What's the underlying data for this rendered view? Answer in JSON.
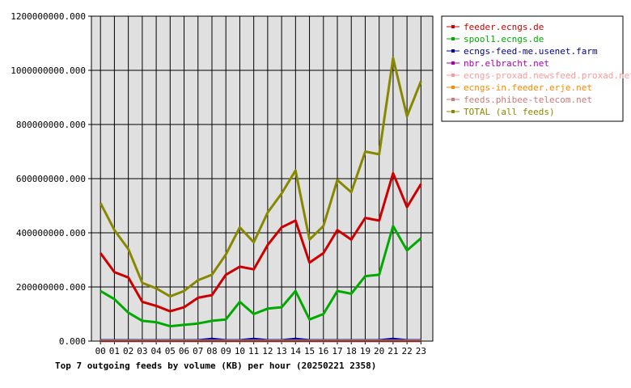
{
  "chart_data": {
    "type": "line",
    "title": "Top 7 outgoing feeds by volume (KB) per hour (20250221 2358)",
    "categories": [
      "00",
      "01",
      "02",
      "03",
      "04",
      "05",
      "06",
      "07",
      "08",
      "09",
      "10",
      "11",
      "12",
      "13",
      "14",
      "15",
      "16",
      "17",
      "18",
      "19",
      "20",
      "21",
      "22",
      "23"
    ],
    "ylim": [
      0,
      1200000000
    ],
    "yticks": [
      "0.000",
      "200000000.000",
      "400000000.000",
      "600000000.000",
      "800000000.000",
      "1000000000.000",
      "1200000000.000"
    ],
    "ytick_values": [
      0,
      200000000,
      400000000,
      600000000,
      800000000,
      1000000000,
      1200000000
    ],
    "grid": true,
    "legend_position": "right",
    "series": [
      {
        "name": "feeder.ecngs.de",
        "color": "#cc0000",
        "values": [
          325000000,
          255000000,
          235000000,
          145000000,
          130000000,
          110000000,
          125000000,
          160000000,
          170000000,
          245000000,
          275000000,
          265000000,
          355000000,
          420000000,
          445000000,
          290000000,
          325000000,
          410000000,
          375000000,
          455000000,
          445000000,
          620000000,
          495000000,
          580000000
        ]
      },
      {
        "name": "spool1.ecngs.de",
        "color": "#00aa00",
        "values": [
          185000000,
          155000000,
          105000000,
          75000000,
          70000000,
          55000000,
          60000000,
          65000000,
          75000000,
          80000000,
          145000000,
          100000000,
          120000000,
          125000000,
          185000000,
          80000000,
          100000000,
          185000000,
          175000000,
          240000000,
          245000000,
          425000000,
          335000000,
          380000000
        ]
      },
      {
        "name": "ecngs-feed-me.usenet.farm",
        "color": "#000099",
        "values": [
          3000000,
          3000000,
          3000000,
          3000000,
          3000000,
          3000000,
          3000000,
          3000000,
          8000000,
          3000000,
          3000000,
          8000000,
          3000000,
          3000000,
          8000000,
          3000000,
          3000000,
          3000000,
          3000000,
          3000000,
          3000000,
          8000000,
          3000000,
          3000000
        ]
      },
      {
        "name": "nbr.elbracht.net",
        "color": "#aa00aa",
        "values": [
          1000000,
          1000000,
          1000000,
          1000000,
          1000000,
          1000000,
          1000000,
          1000000,
          1000000,
          1000000,
          1000000,
          1000000,
          1000000,
          1000000,
          1000000,
          1000000,
          1000000,
          1000000,
          1000000,
          1000000,
          1000000,
          1000000,
          1000000,
          1000000
        ]
      },
      {
        "name": "ecngs-proxad.newsfeed.proxad.net",
        "color": "#ff9999",
        "values": [
          1000000,
          1000000,
          1000000,
          1000000,
          1000000,
          1000000,
          1000000,
          1000000,
          1000000,
          1000000,
          1000000,
          1000000,
          1000000,
          1000000,
          1000000,
          1000000,
          1000000,
          1000000,
          1000000,
          1000000,
          1000000,
          1000000,
          1000000,
          1000000
        ]
      },
      {
        "name": "ecngs-in.feeder.erje.net",
        "color": "#ff8800",
        "values": [
          1000000,
          1000000,
          1000000,
          1000000,
          1000000,
          1000000,
          1000000,
          1000000,
          1000000,
          1000000,
          1000000,
          1000000,
          1000000,
          1000000,
          1000000,
          1000000,
          1000000,
          1000000,
          1000000,
          1000000,
          1000000,
          1000000,
          1000000,
          1000000
        ]
      },
      {
        "name": "feeds.phibee-telecom.net",
        "color": "#cc7777",
        "values": [
          1000000,
          1000000,
          1000000,
          1000000,
          1000000,
          1000000,
          1000000,
          1000000,
          1000000,
          1000000,
          1000000,
          1000000,
          1000000,
          1000000,
          1000000,
          1000000,
          1000000,
          1000000,
          1000000,
          1000000,
          1000000,
          1000000,
          1000000,
          1000000
        ]
      },
      {
        "name": "TOTAL (all feeds)",
        "color": "#888800",
        "values": [
          510000000,
          410000000,
          340000000,
          215000000,
          195000000,
          165000000,
          185000000,
          225000000,
          245000000,
          320000000,
          420000000,
          365000000,
          475000000,
          545000000,
          630000000,
          375000000,
          425000000,
          595000000,
          550000000,
          700000000,
          690000000,
          1045000000,
          830000000,
          960000000
        ]
      }
    ]
  }
}
